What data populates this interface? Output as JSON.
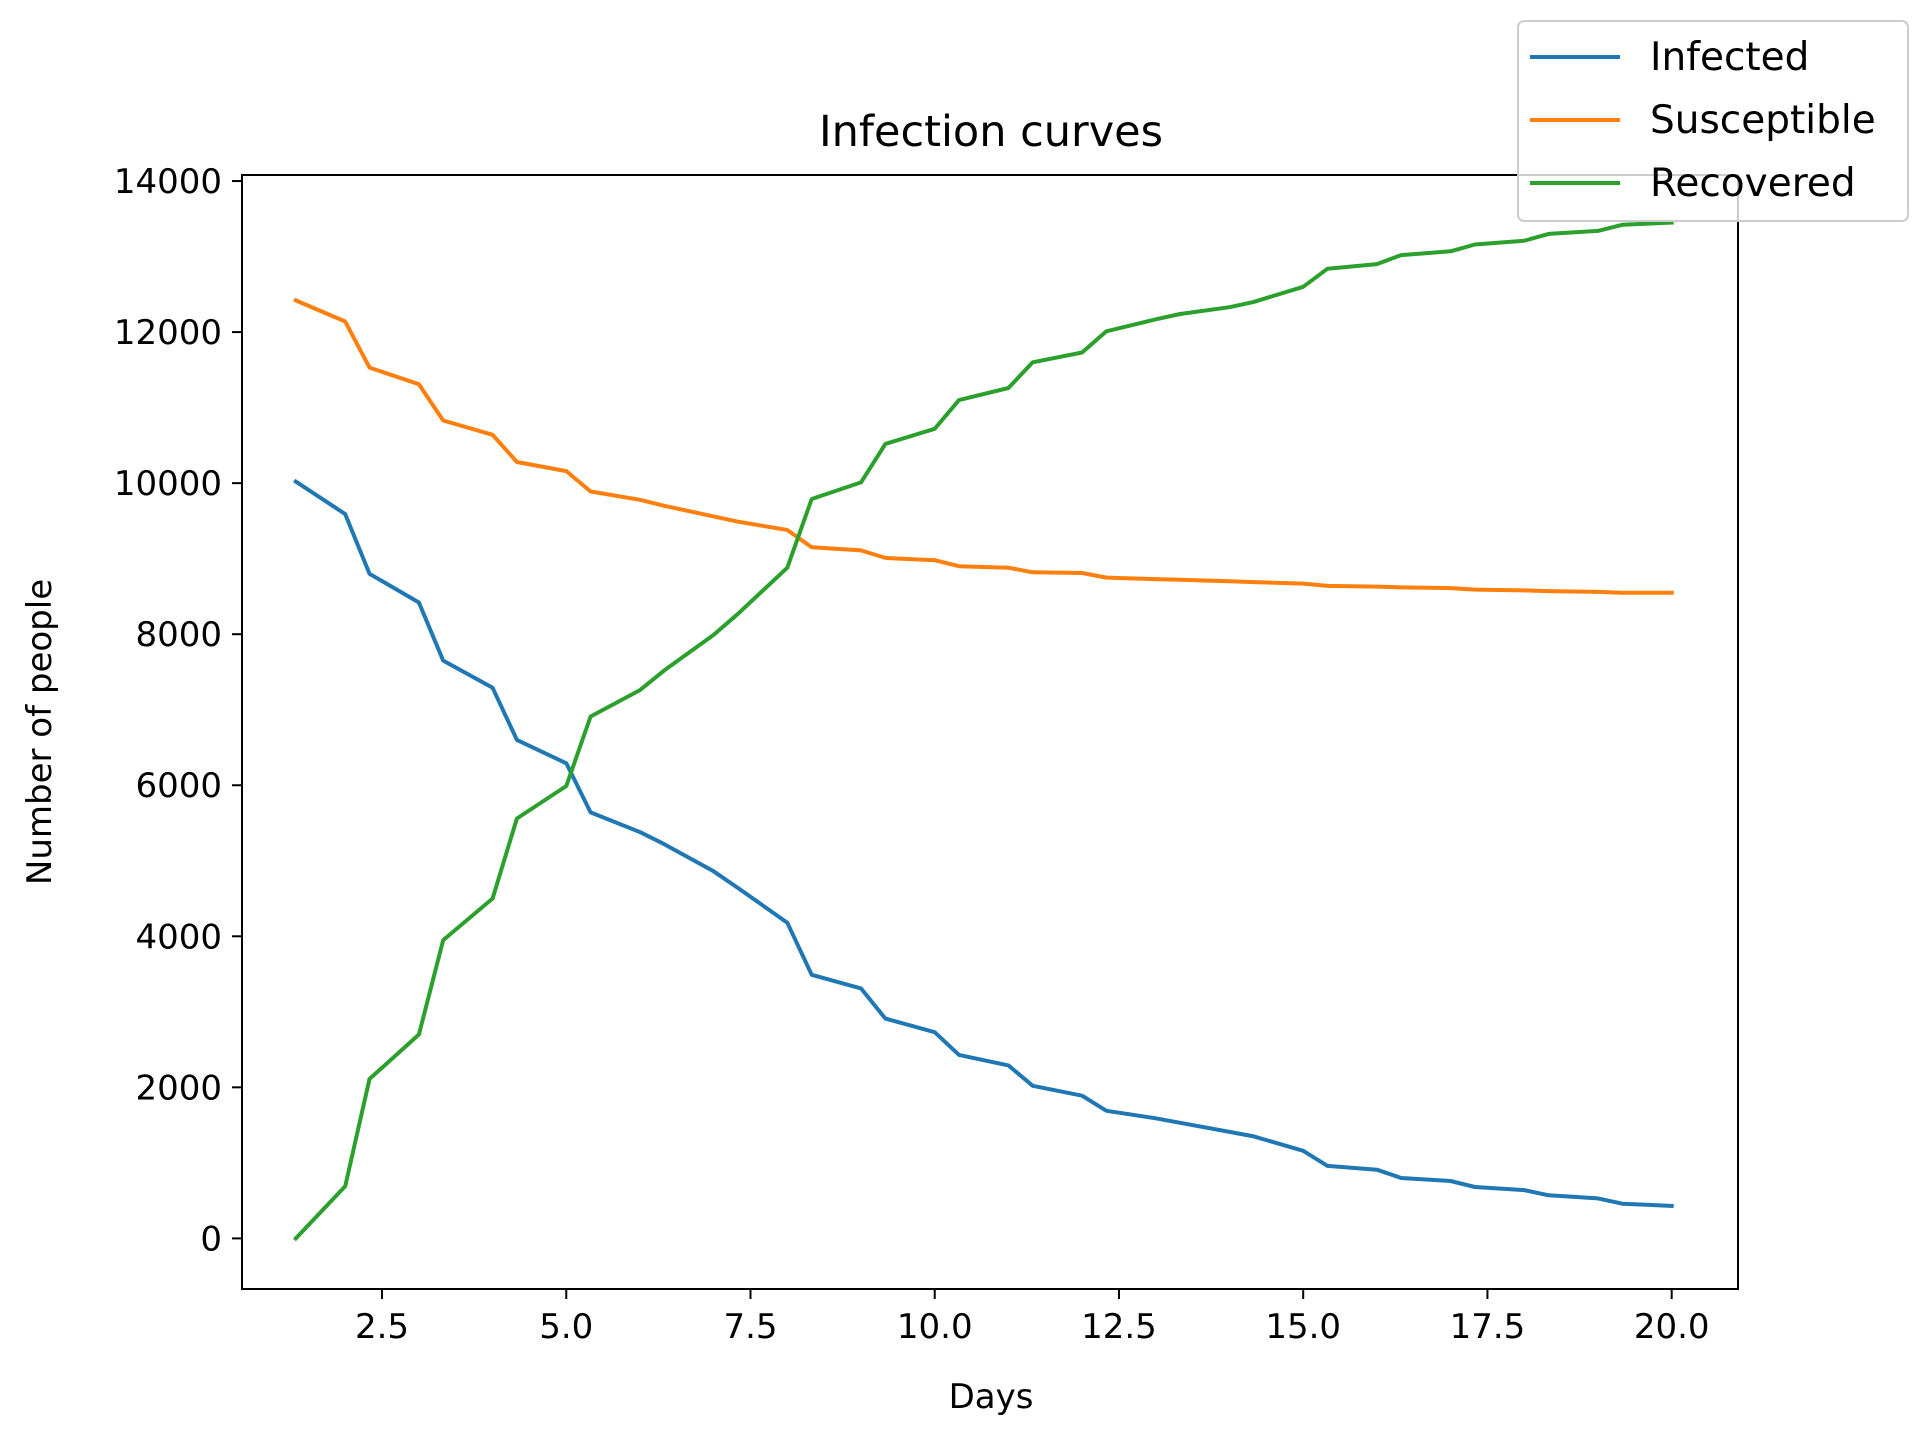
{
  "chart_data": {
    "type": "line",
    "title": "Infection curves",
    "xlabel": "Days",
    "ylabel": "Number of people",
    "xlim": [
      0.6,
      20.9
    ],
    "ylim": [
      -670,
      14080
    ],
    "xticks": [
      2.5,
      5.0,
      7.5,
      10.0,
      12.5,
      15.0,
      17.5,
      20.0
    ],
    "xtick_labels": [
      "2.5",
      "5.0",
      "7.5",
      "10.0",
      "12.5",
      "15.0",
      "17.5",
      "20.0"
    ],
    "yticks": [
      0,
      2000,
      4000,
      6000,
      8000,
      10000,
      12000,
      14000
    ],
    "ytick_labels": [
      "0",
      "2000",
      "4000",
      "6000",
      "8000",
      "10000",
      "12000",
      "14000"
    ],
    "grid": false,
    "legend_position": "top-right",
    "x": [
      1.33,
      2.0,
      2.33,
      3.0,
      3.33,
      4.0,
      4.33,
      5.0,
      5.33,
      6.0,
      6.33,
      7.0,
      7.33,
      8.0,
      8.33,
      9.0,
      9.33,
      10.0,
      10.33,
      11.0,
      11.33,
      12.0,
      12.33,
      13.0,
      13.33,
      14.0,
      14.33,
      15.0,
      15.33,
      16.0,
      16.33,
      17.0,
      17.33,
      18.0,
      18.33,
      19.0,
      19.33,
      20.0
    ],
    "series": [
      {
        "name": "Infected",
        "color": "#1f77b4",
        "values": [
          10020,
          9590,
          8800,
          8420,
          7650,
          7290,
          6600,
          6290,
          5640,
          5380,
          5220,
          4860,
          4640,
          4180,
          3490,
          3310,
          2910,
          2730,
          2430,
          2290,
          2020,
          1890,
          1690,
          1590,
          1530,
          1410,
          1350,
          1160,
          960,
          910,
          800,
          760,
          680,
          640,
          570,
          530,
          460,
          430
        ]
      },
      {
        "name": "Susceptible",
        "color": "#ff7f0e",
        "values": [
          12420,
          12140,
          11530,
          11310,
          10830,
          10640,
          10280,
          10160,
          9890,
          9780,
          9700,
          9560,
          9490,
          9380,
          9150,
          9110,
          9010,
          8980,
          8900,
          8880,
          8820,
          8810,
          8750,
          8730,
          8720,
          8700,
          8690,
          8670,
          8640,
          8630,
          8620,
          8610,
          8590,
          8580,
          8570,
          8560,
          8550,
          8550
        ]
      },
      {
        "name": "Recovered",
        "color": "#2ca02c",
        "values": [
          0,
          690,
          2110,
          2700,
          3950,
          4500,
          5560,
          5990,
          6910,
          7260,
          7520,
          7990,
          8270,
          8880,
          9790,
          10010,
          10520,
          10720,
          11100,
          11260,
          11600,
          11730,
          12010,
          12170,
          12240,
          12330,
          12400,
          12600,
          12840,
          12900,
          13020,
          13070,
          13160,
          13210,
          13300,
          13340,
          13420,
          13450
        ]
      }
    ]
  }
}
